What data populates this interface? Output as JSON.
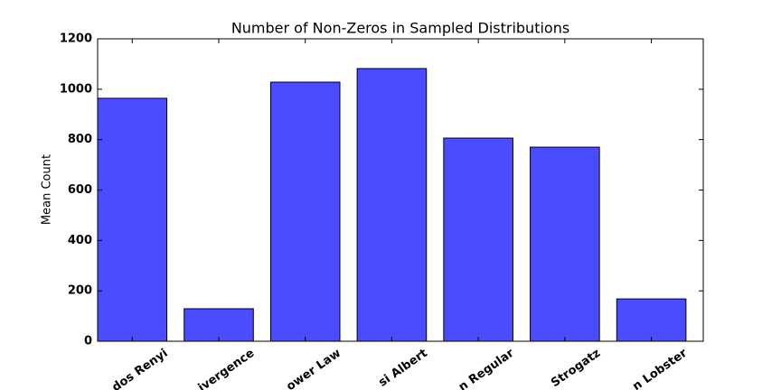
{
  "chart_data": {
    "type": "bar",
    "title": "Number of Non-Zeros in Sampled Distributions",
    "y_label": "Mean Count",
    "categories": [
      "dos Renyi",
      "ivergence",
      "ower Law",
      "si Albert",
      "n Regular",
      "Strogatz",
      "n Lobster"
    ],
    "values": [
      964,
      129,
      1028,
      1082,
      806,
      770,
      168
    ],
    "color": "#4b4bff",
    "ylim": [
      0,
      1200
    ],
    "yticks": [
      0,
      200,
      400,
      600,
      800,
      1000,
      1200
    ],
    "grid": false
  }
}
